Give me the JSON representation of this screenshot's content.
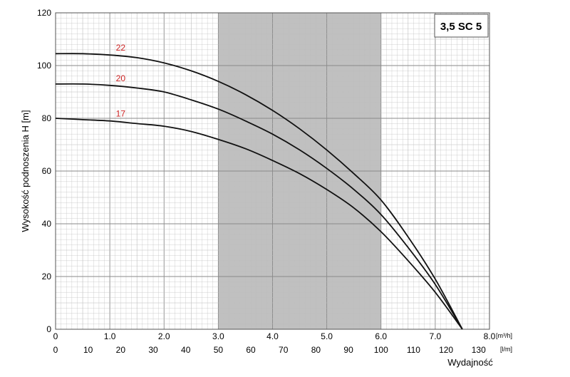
{
  "chart_data": {
    "type": "line",
    "title": "3,5 SC 5",
    "ylabel": "Wysokość podnoszenia H [m]",
    "xlabel": "Wydajność",
    "x_units": [
      "[m³/h]",
      "[l/m]"
    ],
    "xlim": [
      0,
      8.0
    ],
    "ylim": [
      0,
      120
    ],
    "x_ticks_m3h": [
      "0",
      "1.0",
      "2.0",
      "3.0",
      "4.0",
      "5.0",
      "6.0",
      "7.0",
      "8.0"
    ],
    "x_ticks_lm": [
      "0",
      "10",
      "20",
      "30",
      "40",
      "50",
      "60",
      "70",
      "80",
      "90",
      "100",
      "110",
      "120",
      "130"
    ],
    "y_ticks": [
      "0",
      "20",
      "40",
      "60",
      "80",
      "100",
      "120"
    ],
    "shaded_range_m3h": [
      3.0,
      6.0
    ],
    "grid": true,
    "colors": {
      "curve": "#111111",
      "shade": "#c0c0c0",
      "grid": "#bdbdbd",
      "label": "#cc2222"
    },
    "series": [
      {
        "name": "22",
        "x": [
          0,
          0.5,
          1.0,
          1.5,
          2.0,
          2.5,
          3.0,
          3.5,
          4.0,
          4.5,
          5.0,
          5.5,
          6.0,
          6.5,
          7.0,
          7.5
        ],
        "y": [
          104.5,
          104.5,
          104,
          103,
          101,
          98,
          94,
          89,
          83,
          76,
          68,
          59,
          49,
          35,
          19,
          0
        ]
      },
      {
        "name": "20",
        "x": [
          0,
          0.5,
          1.0,
          1.5,
          2.0,
          2.5,
          3.0,
          3.5,
          4.0,
          4.5,
          5.0,
          5.5,
          6.0,
          6.5,
          7.0,
          7.5
        ],
        "y": [
          93,
          93,
          92.5,
          91.5,
          90,
          87,
          83.5,
          79,
          74,
          68,
          61,
          53,
          43.5,
          31,
          17,
          0
        ]
      },
      {
        "name": "17",
        "x": [
          0,
          0.5,
          1.0,
          1.5,
          2.0,
          2.5,
          3.0,
          3.5,
          4.0,
          4.5,
          5.0,
          5.5,
          6.0,
          6.5,
          7.0,
          7.5
        ],
        "y": [
          80,
          79.5,
          79,
          78,
          77,
          75,
          72,
          68.5,
          64,
          59,
          53,
          46,
          37,
          26,
          14,
          0
        ]
      }
    ]
  }
}
